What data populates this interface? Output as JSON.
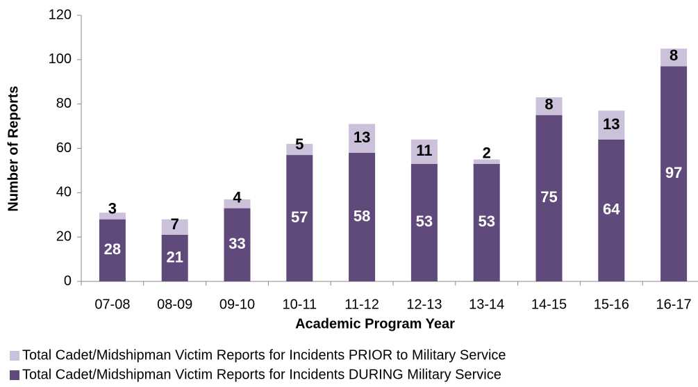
{
  "chart_data": {
    "type": "stacked_bar",
    "x_label": "Academic Program Year",
    "y_label": "Number of  Reports",
    "categories": [
      "07-08",
      "08-09",
      "09-10",
      "10-11",
      "11-12",
      "12-13",
      "13-14",
      "14-15",
      "15-16",
      "16-17"
    ],
    "series": [
      {
        "name": "Total Cadet/Midshipman Victim Reports for Incidents DURING  Military Service",
        "color": "#604a7b",
        "label_color": "#ffffff",
        "values": [
          28,
          21,
          33,
          57,
          58,
          53,
          53,
          75,
          64,
          97
        ]
      },
      {
        "name": "Total Cadet/Midshipman Victim Reports for Incidents PRIOR to  Military Service",
        "color": "#ccc1da",
        "label_color": "#000000",
        "values": [
          3,
          7,
          4,
          5,
          13,
          11,
          2,
          8,
          13,
          8
        ]
      }
    ],
    "ylim": [
      0,
      120
    ],
    "yticks": [
      0,
      20,
      40,
      60,
      80,
      100,
      120
    ],
    "grid": false
  }
}
